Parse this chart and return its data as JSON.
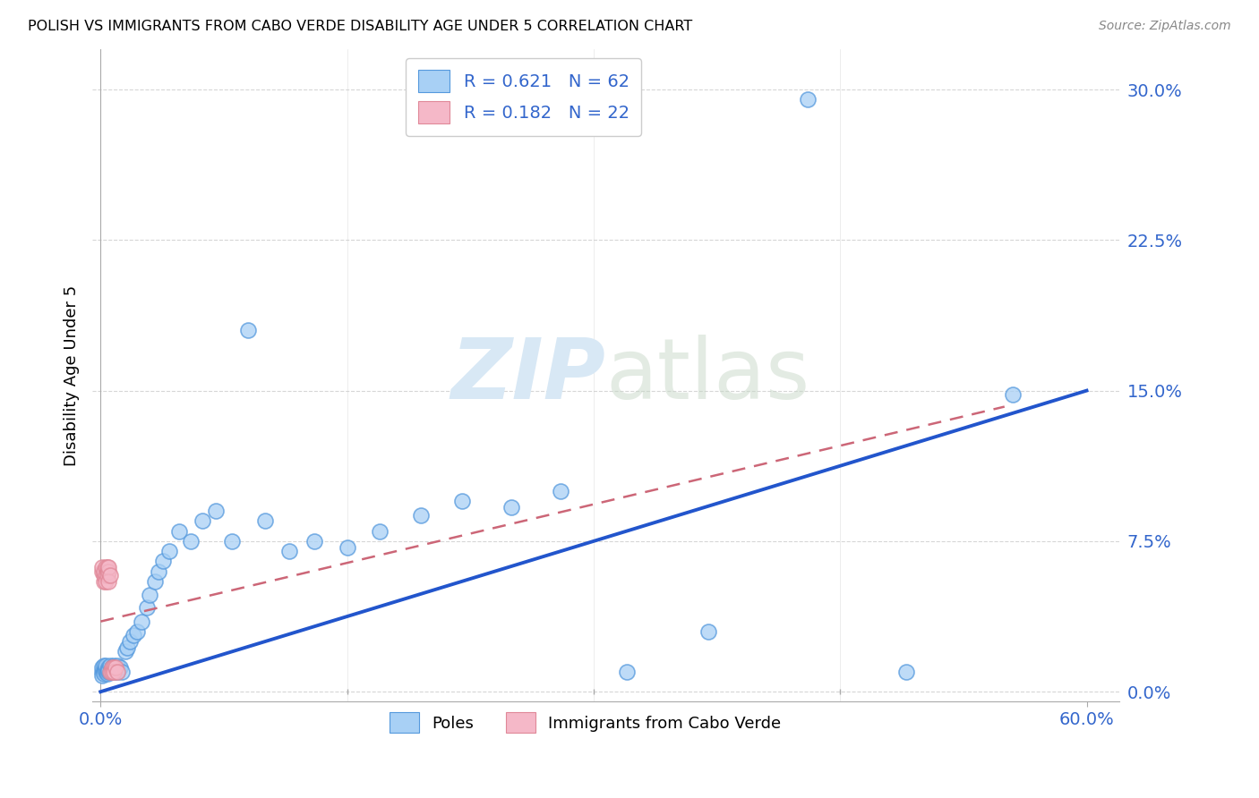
{
  "title": "POLISH VS IMMIGRANTS FROM CABO VERDE DISABILITY AGE UNDER 5 CORRELATION CHART",
  "source": "Source: ZipAtlas.com",
  "ylabel": "Disability Age Under 5",
  "ytick_labels": [
    "0.0%",
    "7.5%",
    "15.0%",
    "22.5%",
    "30.0%"
  ],
  "ytick_values": [
    0.0,
    0.075,
    0.15,
    0.225,
    0.3
  ],
  "xtick_labels": [
    "0.0%",
    "60.0%"
  ],
  "xtick_values": [
    0.0,
    0.6
  ],
  "xlim": [
    -0.005,
    0.62
  ],
  "ylim": [
    -0.005,
    0.32
  ],
  "blue_R": 0.621,
  "blue_N": 62,
  "pink_R": 0.182,
  "pink_N": 22,
  "blue_fill_color": "#A8D0F5",
  "pink_fill_color": "#F5B8C8",
  "blue_edge_color": "#5599DD",
  "pink_edge_color": "#E08898",
  "blue_line_color": "#2255CC",
  "pink_line_color": "#CC6677",
  "grid_color": "#CCCCCC",
  "tick_label_color": "#3366CC",
  "watermark_color": "#D8E8F5",
  "legend_label_blue": "Poles",
  "legend_label_pink": "Immigrants from Cabo Verde",
  "blue_x": [
    0.001,
    0.001,
    0.001,
    0.002,
    0.002,
    0.002,
    0.002,
    0.003,
    0.003,
    0.003,
    0.003,
    0.004,
    0.004,
    0.004,
    0.005,
    0.005,
    0.005,
    0.006,
    0.006,
    0.007,
    0.007,
    0.008,
    0.008,
    0.009,
    0.009,
    0.01,
    0.01,
    0.011,
    0.012,
    0.013,
    0.015,
    0.016,
    0.018,
    0.02,
    0.022,
    0.025,
    0.028,
    0.03,
    0.033,
    0.035,
    0.038,
    0.042,
    0.048,
    0.055,
    0.062,
    0.07,
    0.08,
    0.09,
    0.1,
    0.115,
    0.13,
    0.15,
    0.17,
    0.195,
    0.22,
    0.25,
    0.28,
    0.32,
    0.37,
    0.43,
    0.49,
    0.555
  ],
  "blue_y": [
    0.01,
    0.012,
    0.008,
    0.011,
    0.013,
    0.01,
    0.009,
    0.012,
    0.01,
    0.011,
    0.013,
    0.01,
    0.011,
    0.009,
    0.012,
    0.01,
    0.011,
    0.013,
    0.01,
    0.012,
    0.011,
    0.013,
    0.01,
    0.012,
    0.011,
    0.01,
    0.013,
    0.011,
    0.012,
    0.01,
    0.02,
    0.022,
    0.025,
    0.028,
    0.03,
    0.035,
    0.042,
    0.048,
    0.055,
    0.06,
    0.065,
    0.07,
    0.08,
    0.075,
    0.085,
    0.09,
    0.075,
    0.18,
    0.085,
    0.07,
    0.075,
    0.072,
    0.08,
    0.088,
    0.095,
    0.092,
    0.1,
    0.01,
    0.03,
    0.295,
    0.01,
    0.148
  ],
  "pink_x": [
    0.001,
    0.001,
    0.002,
    0.002,
    0.002,
    0.003,
    0.003,
    0.003,
    0.004,
    0.004,
    0.004,
    0.005,
    0.005,
    0.005,
    0.006,
    0.006,
    0.007,
    0.007,
    0.008,
    0.008,
    0.009,
    0.01
  ],
  "pink_y": [
    0.06,
    0.062,
    0.055,
    0.058,
    0.06,
    0.062,
    0.058,
    0.055,
    0.06,
    0.062,
    0.058,
    0.06,
    0.062,
    0.055,
    0.058,
    0.01,
    0.012,
    0.01,
    0.012,
    0.01,
    0.012,
    0.01
  ],
  "blue_line_x0": 0.0,
  "blue_line_x1": 0.6,
  "blue_line_y0": 0.0,
  "blue_line_y1": 0.15,
  "pink_line_x0": 0.0,
  "pink_line_x1": 0.55,
  "pink_line_y0": 0.035,
  "pink_line_y1": 0.142
}
